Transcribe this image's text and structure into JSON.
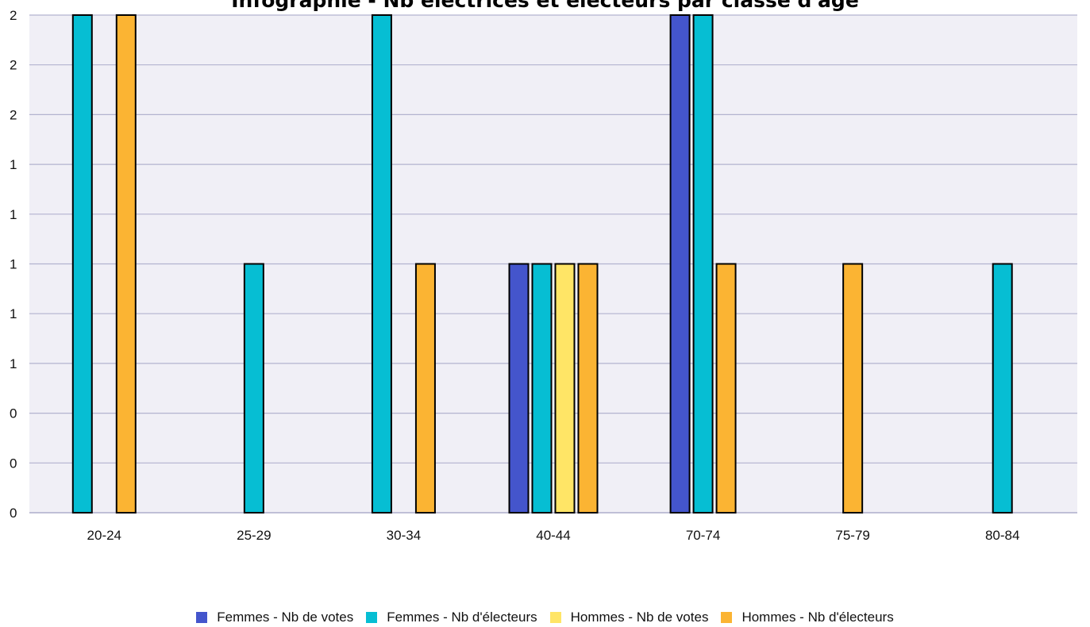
{
  "chart_data": {
    "type": "bar",
    "title": "Infographie - Nb électrices et électeurs par classe d'âge",
    "xlabel": "",
    "ylabel": "",
    "categories": [
      "20-24",
      "25-29",
      "30-34",
      "40-44",
      "70-74",
      "75-79",
      "80-84"
    ],
    "ylim": [
      0,
      2
    ],
    "y_tick_values": [
      0,
      0.2,
      0.4,
      0.6,
      0.8,
      1.0,
      1.2,
      1.4,
      1.6,
      1.8,
      2.0
    ],
    "y_tick_labels": [
      "0",
      "0",
      "0",
      "1",
      "1",
      "1",
      "1",
      "1",
      "2",
      "2",
      "2"
    ],
    "grid": true,
    "legend_position": "bottom",
    "series": [
      {
        "name": "Femmes - Nb de votes",
        "color": "#4455CC",
        "values": [
          0,
          0,
          0,
          1,
          2,
          0,
          0
        ]
      },
      {
        "name": "Femmes - Nb d'électeurs",
        "color": "#06BED3",
        "values": [
          2,
          1,
          2,
          1,
          2,
          0,
          1
        ]
      },
      {
        "name": "Hommes - Nb de votes",
        "color": "#FFE566",
        "values": [
          0,
          0,
          0,
          1,
          0,
          0,
          0
        ]
      },
      {
        "name": "Hommes - Nb d'électeurs",
        "color": "#FBB433",
        "values": [
          2,
          0,
          1,
          1,
          1,
          1,
          0
        ]
      }
    ],
    "plot_background": "#F0EFF6",
    "grid_color": "#B3B3CF"
  }
}
